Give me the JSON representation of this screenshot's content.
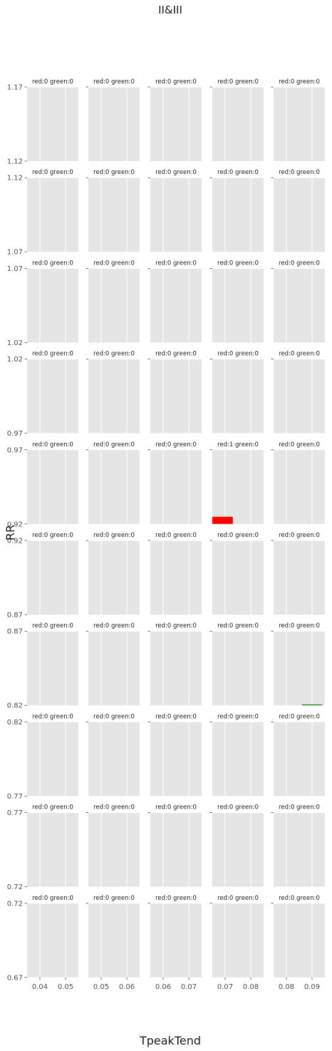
{
  "chart_data": {
    "type": "bar",
    "title": "II&III",
    "xlabel": "TpeakTend",
    "ylabel": "RR",
    "grid": true,
    "columns": [
      {
        "xlim": [
          0.035,
          0.055
        ],
        "xticks": [
          "0.04",
          "0.05"
        ]
      },
      {
        "xlim": [
          0.045,
          0.065
        ],
        "xticks": [
          "0.05",
          "0.06"
        ]
      },
      {
        "xlim": [
          0.055,
          0.075
        ],
        "xticks": [
          "0.06",
          "0.07"
        ]
      },
      {
        "xlim": [
          0.065,
          0.085
        ],
        "xticks": [
          "0.07",
          "0.08"
        ]
      },
      {
        "xlim": [
          0.075,
          0.095
        ],
        "xticks": [
          "0.08",
          "0.09"
        ]
      }
    ],
    "rows": [
      {
        "ylim": [
          1.12,
          1.17
        ],
        "ytick": "1.17",
        "ybottom": "1.12"
      },
      {
        "ylim": [
          1.07,
          1.12
        ],
        "ytick": "1.12",
        "ybottom": "1.07"
      },
      {
        "ylim": [
          1.02,
          1.07
        ],
        "ytick": "1.07",
        "ybottom": "1.02"
      },
      {
        "ylim": [
          0.97,
          1.02
        ],
        "ytick": "1.02",
        "ybottom": "0.97"
      },
      {
        "ylim": [
          0.92,
          0.97
        ],
        "ytick": "0.97",
        "ybottom": "0.92"
      },
      {
        "ylim": [
          0.87,
          0.92
        ],
        "ytick": "0.92",
        "ybottom": "0.87"
      },
      {
        "ylim": [
          0.82,
          0.87
        ],
        "ytick": "0.87",
        "ybottom": "0.82"
      },
      {
        "ylim": [
          0.77,
          0.82
        ],
        "ytick": "0.82",
        "ybottom": "0.77"
      },
      {
        "ylim": [
          0.72,
          0.77
        ],
        "ytick": "0.77",
        "ybottom": "0.72"
      },
      {
        "ylim": [
          0.67,
          0.72
        ],
        "ytick": "0.72",
        "ybottom": "0.67"
      }
    ],
    "panels": [
      [
        "red:0 green:0",
        "red:0 green:0",
        "red:0 green:0",
        "red:0 green:0",
        "red:0 green:0"
      ],
      [
        "red:0 green:0",
        "red:0 green:0",
        "red:0 green:0",
        "red:0 green:0",
        "red:0 green:0"
      ],
      [
        "red:0 green:0",
        "red:0 green:0",
        "red:0 green:0",
        "red:0 green:0",
        "red:0 green:0"
      ],
      [
        "red:0 green:0",
        "red:0 green:0",
        "red:0 green:0",
        "red:0 green:0",
        "red:0 green:0"
      ],
      [
        "red:0 green:0",
        "red:0 green:0",
        "red:0 green:0",
        "red:1 green:0",
        "red:0 green:0"
      ],
      [
        "red:0 green:0",
        "red:0 green:0",
        "red:0 green:0",
        "red:0 green:0",
        "red:0 green:0"
      ],
      [
        "red:0 green:0",
        "red:0 green:0",
        "red:0 green:0",
        "red:0 green:0",
        "red:0 green:0"
      ],
      [
        "red:0 green:0",
        "red:0 green:0",
        "red:0 green:0",
        "red:0 green:0",
        "red:0 green:0"
      ],
      [
        "red:0 green:0",
        "red:0 green:0",
        "red:0 green:0",
        "red:0 green:0",
        "red:0 green:0"
      ],
      [
        "red:0 green:0",
        "red:0 green:0",
        "red:0 green:0",
        "red:0 green:0",
        "red:0 green:0"
      ]
    ],
    "bars": [
      {
        "row": 4,
        "col": 3,
        "series": "red",
        "color": "#ff0000",
        "x0": 0.065,
        "x1": 0.073,
        "height": 1
      },
      {
        "row": 6,
        "col": 4,
        "series": "green",
        "color": "#008000",
        "x0": 0.086,
        "x1": 0.094,
        "height": 0
      }
    ],
    "colors": {
      "panel_bg": "#e5e5e5",
      "grid": "#ffffff",
      "tick": "#4d4d4d",
      "text": "#1a1a1a"
    }
  }
}
